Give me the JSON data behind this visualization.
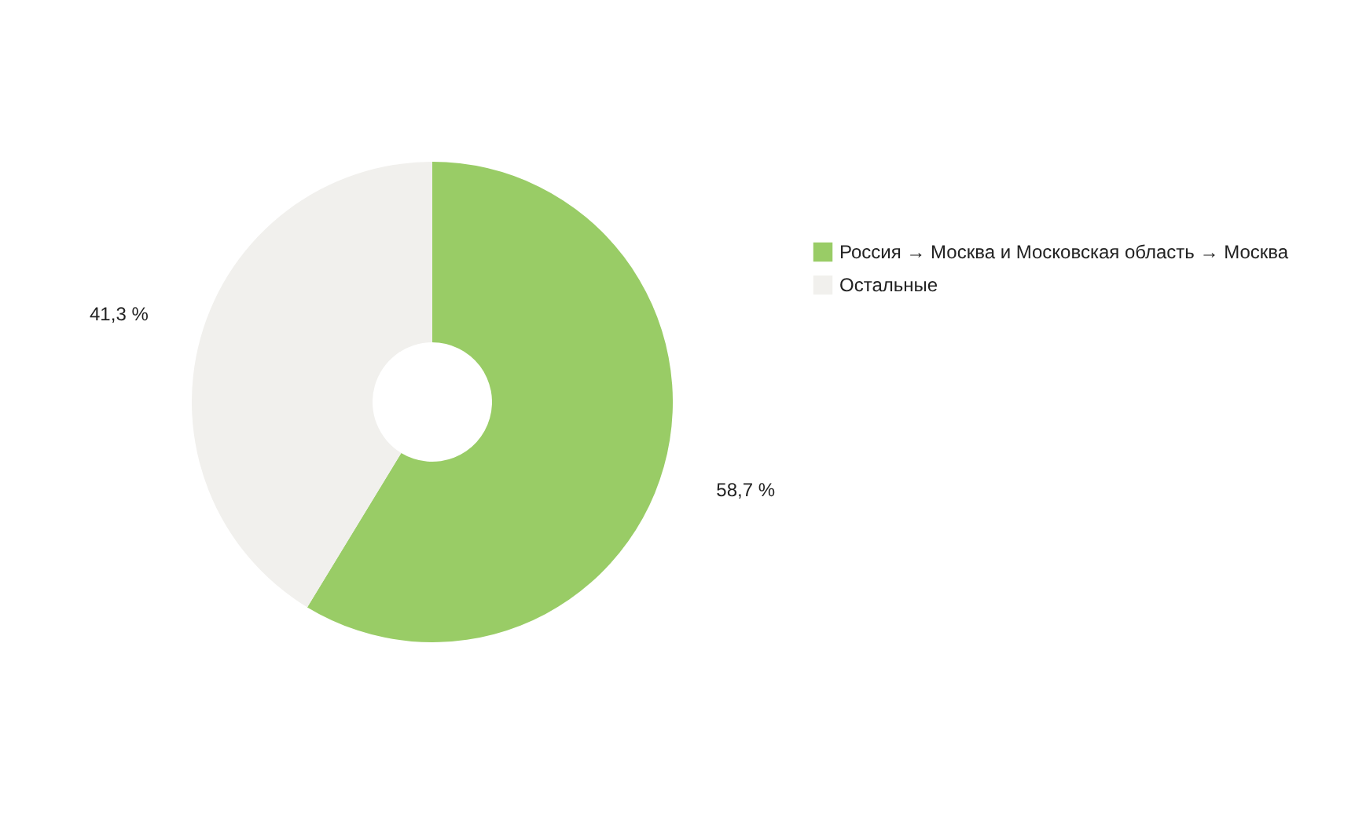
{
  "chart_data": {
    "type": "donut",
    "categories": [
      "Россия → Москва и Московская область → Москва",
      "Остальные"
    ],
    "values": [
      58.7,
      41.3
    ],
    "colors": [
      "#99cc66",
      "#f1f0ed"
    ],
    "value_labels": [
      "58,7 %",
      "41,3 %"
    ],
    "legend": "right"
  }
}
